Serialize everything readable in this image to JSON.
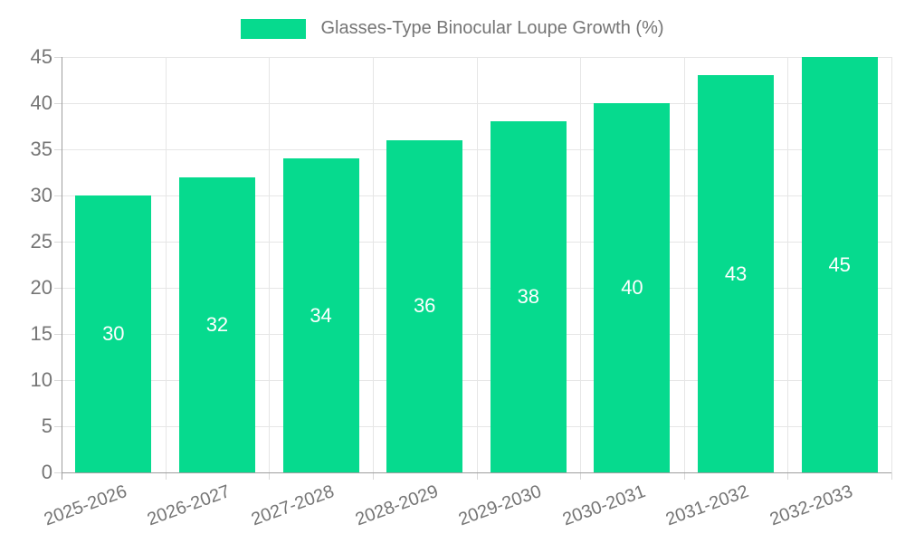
{
  "chart_data": {
    "type": "bar",
    "title": "Glasses-Type Binocular Loupe Growth (%)",
    "categories": [
      "2025-2026",
      "2026-2027",
      "2027-2028",
      "2028-2029",
      "2029-2030",
      "2030-2031",
      "2031-2032",
      "2032-2033"
    ],
    "values": [
      30,
      32,
      34,
      36,
      38,
      40,
      43,
      45
    ],
    "bar_labels": [
      "30",
      "32",
      "34",
      "36",
      "38",
      "40",
      "43",
      "45"
    ],
    "xlabel": "",
    "ylabel": "",
    "ylim": [
      0,
      45
    ],
    "ytick_step": 5,
    "ytick_labels": [
      "0",
      "5",
      "10",
      "15",
      "20",
      "25",
      "30",
      "35",
      "40",
      "45"
    ],
    "grid": true,
    "legend_position": "top-center",
    "colors": {
      "bar": "#06da8e",
      "axis_text": "#757575",
      "bar_label_text": "#ffffff",
      "grid_line": "#e6e6e6",
      "tick_line": "#d9d9d9",
      "axis_line": "#9e9e9e",
      "background": "#ffffff"
    }
  },
  "legend": {
    "items": [
      {
        "label": "Glasses-Type Binocular Loupe Growth (%)"
      }
    ]
  }
}
